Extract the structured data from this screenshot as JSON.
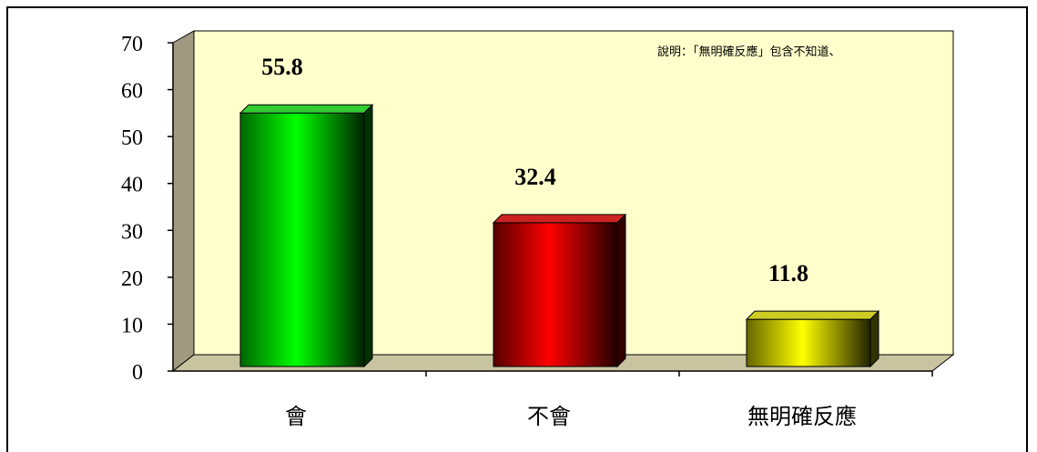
{
  "chart_data": {
    "type": "bar",
    "categories": [
      "會",
      "不會",
      "無明確反應"
    ],
    "values": [
      55.8,
      32.4,
      11.8
    ],
    "value_labels": [
      "55.8",
      "32.4",
      "11.8"
    ],
    "ylim": [
      0,
      70
    ],
    "yticks": [
      "0",
      "10",
      "20",
      "30",
      "40",
      "50",
      "60",
      "70"
    ],
    "annotation": "說明：「無明確反應」包含不知道、",
    "grid": false,
    "colors": {
      "bars": [
        "#00ff00",
        "#ff0000",
        "#ffff00"
      ],
      "plot_wall": "#ffffcc",
      "side_wall": "#a09a80",
      "floor": "#c8c4a0"
    }
  }
}
